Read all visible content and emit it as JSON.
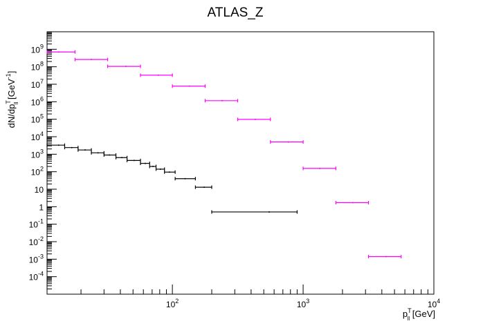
{
  "chart_data": {
    "type": "scatter",
    "title": "ATLAS_Z",
    "xlabel": {
      "base": "p",
      "sup": "T",
      "sub": "ll",
      "unit": " [GeV]"
    },
    "ylabel": {
      "text": "dN/dp",
      "sup": "T",
      "sub": "ll",
      "unit_open": " [GeV",
      "unit_sup": "-1",
      "unit_close": "]"
    },
    "xscale": "log",
    "yscale": "log",
    "xlim": [
      11,
      10000
    ],
    "ylim": [
      1e-05,
      10000000000
    ],
    "grid": false,
    "colors": {
      "series_magenta": "#ff00ff",
      "series_black": "#000000",
      "axis": "#000000"
    },
    "x_tick_labels": [
      {
        "value": 100,
        "base": "10",
        "exp": "2"
      },
      {
        "value": 1000,
        "base": "10",
        "exp": "3"
      },
      {
        "value": 10000,
        "base": "10",
        "exp": "4"
      }
    ],
    "y_tick_labels": [
      {
        "value": 0.0001,
        "base": "10",
        "exp": "-4"
      },
      {
        "value": 0.001,
        "base": "10",
        "exp": "-3"
      },
      {
        "value": 0.01,
        "base": "10",
        "exp": "-2"
      },
      {
        "value": 0.1,
        "base": "10",
        "exp": "-1"
      },
      {
        "value": 1,
        "base": "1",
        "exp": ""
      },
      {
        "value": 10,
        "base": "10",
        "exp": ""
      },
      {
        "value": 100,
        "base": "10",
        "exp": "2"
      },
      {
        "value": 1000,
        "base": "10",
        "exp": "3"
      },
      {
        "value": 10000,
        "base": "10",
        "exp": "4"
      },
      {
        "value": 100000,
        "base": "10",
        "exp": "5"
      },
      {
        "value": 1000000,
        "base": "10",
        "exp": "6"
      },
      {
        "value": 10000000,
        "base": "10",
        "exp": "7"
      },
      {
        "value": 100000000,
        "base": "10",
        "exp": "8"
      },
      {
        "value": 1000000000,
        "base": "10",
        "exp": "9"
      }
    ],
    "series": [
      {
        "color": "#ff00ff",
        "points": [
          {
            "x": 13.5,
            "x_low": 11,
            "x_high": 18,
            "y": 700000000
          },
          {
            "x": 24,
            "x_low": 18,
            "x_high": 32,
            "y": 260000000
          },
          {
            "x": 44,
            "x_low": 32,
            "x_high": 57,
            "y": 105000000
          },
          {
            "x": 78,
            "x_low": 57,
            "x_high": 100,
            "y": 33000000
          },
          {
            "x": 135,
            "x_low": 100,
            "x_high": 178,
            "y": 7800000
          },
          {
            "x": 240,
            "x_low": 178,
            "x_high": 316,
            "y": 1150000
          },
          {
            "x": 430,
            "x_low": 316,
            "x_high": 562,
            "y": 98000
          },
          {
            "x": 770,
            "x_low": 562,
            "x_high": 1000,
            "y": 5000
          },
          {
            "x": 1340,
            "x_low": 1000,
            "x_high": 1780,
            "y": 155
          },
          {
            "x": 2400,
            "x_low": 1780,
            "x_high": 3160,
            "y": 1.7
          },
          {
            "x": 4300,
            "x_low": 3160,
            "x_high": 5620,
            "y": 0.0014
          }
        ]
      },
      {
        "color": "#000000",
        "points": [
          {
            "x": 13.5,
            "x_low": 11,
            "x_high": 15,
            "y": 3300
          },
          {
            "x": 17,
            "x_low": 15,
            "x_high": 19,
            "y": 2400
          },
          {
            "x": 21.5,
            "x_low": 19,
            "x_high": 24,
            "y": 1750
          },
          {
            "x": 27,
            "x_low": 24,
            "x_high": 30,
            "y": 1200
          },
          {
            "x": 33,
            "x_low": 30,
            "x_high": 37,
            "y": 900
          },
          {
            "x": 41,
            "x_low": 37,
            "x_high": 45,
            "y": 640
          },
          {
            "x": 51,
            "x_low": 45,
            "x_high": 57,
            "y": 440
          },
          {
            "x": 62,
            "x_low": 57,
            "x_high": 67,
            "y": 300
          },
          {
            "x": 71,
            "x_low": 67,
            "x_high": 75,
            "y": 200
          },
          {
            "x": 81,
            "x_low": 75,
            "x_high": 87,
            "y": 140
          },
          {
            "x": 95,
            "x_low": 87,
            "x_high": 105,
            "y": 95
          },
          {
            "x": 125,
            "x_low": 105,
            "x_high": 150,
            "y": 40
          },
          {
            "x": 175,
            "x_low": 150,
            "x_high": 200,
            "y": 13
          },
          {
            "x": 550,
            "x_low": 200,
            "x_high": 900,
            "y": 0.5
          }
        ]
      }
    ]
  }
}
